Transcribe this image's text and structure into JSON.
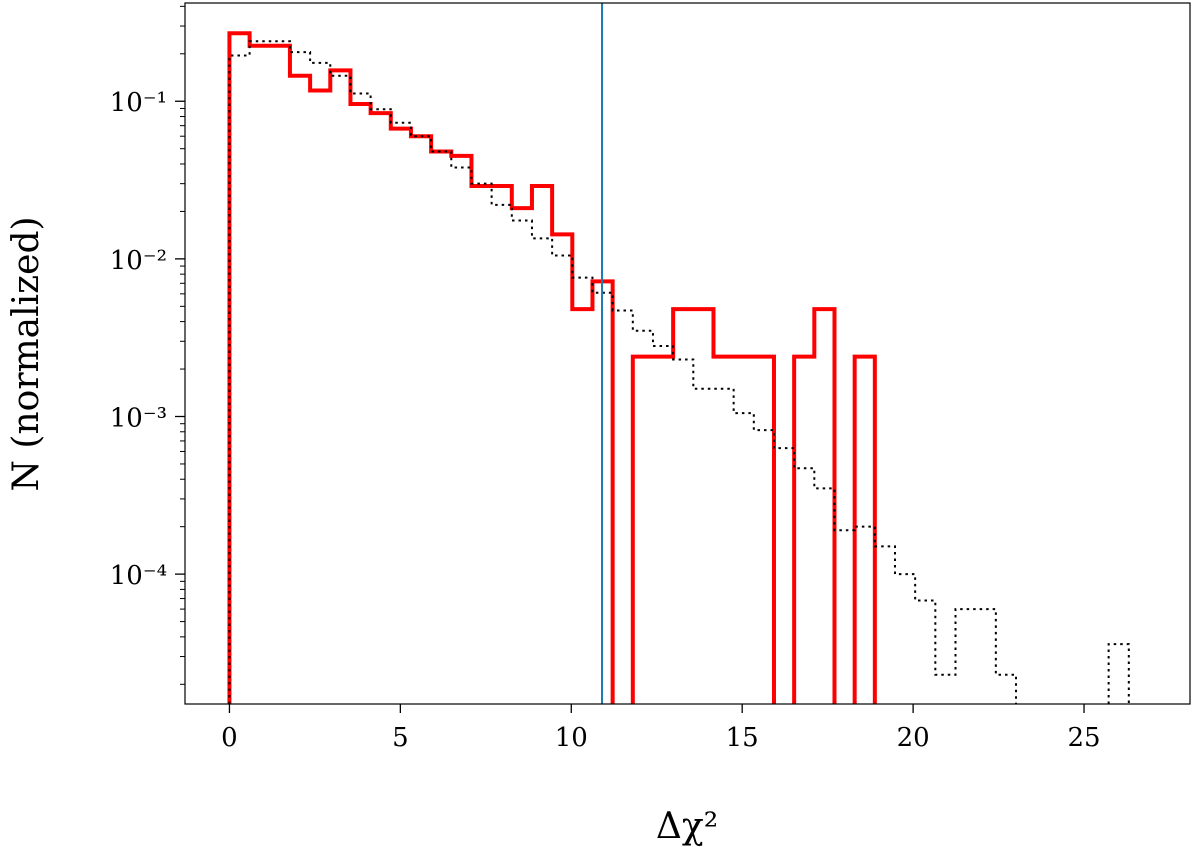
{
  "chart_data": {
    "type": "histogram-step",
    "xlabel": "Δχ²",
    "ylabel": "N (normalized)",
    "xlim": [
      -1.3,
      28.1
    ],
    "ylim": [
      1.5e-05,
      0.42
    ],
    "yscale": "log",
    "grid": false,
    "x_ticks": [
      0,
      5,
      10,
      15,
      20,
      25
    ],
    "x_tick_labels": [
      "0",
      "5",
      "10",
      "15",
      "20",
      "25"
    ],
    "y_ticks": [
      0.0001,
      0.001,
      0.01,
      0.1
    ],
    "y_tick_labels": [
      "10⁻⁴",
      "10⁻³",
      "10⁻²",
      "10⁻¹"
    ],
    "vline": {
      "x": 10.9,
      "color": "#1f77b4"
    },
    "series": [
      {
        "style": "solid",
        "color": "#ff0000",
        "bin_width": 0.59,
        "bins": [
          {
            "x": 0.0,
            "y": 0.27
          },
          {
            "x": 0.59,
            "y": 0.225
          },
          {
            "x": 1.18,
            "y": 0.225
          },
          {
            "x": 1.77,
            "y": 0.145
          },
          {
            "x": 2.36,
            "y": 0.117
          },
          {
            "x": 2.95,
            "y": 0.157
          },
          {
            "x": 3.54,
            "y": 0.096
          },
          {
            "x": 4.13,
            "y": 0.084
          },
          {
            "x": 4.72,
            "y": 0.067
          },
          {
            "x": 5.31,
            "y": 0.06
          },
          {
            "x": 5.9,
            "y": 0.048
          },
          {
            "x": 6.49,
            "y": 0.045
          },
          {
            "x": 7.08,
            "y": 0.029
          },
          {
            "x": 7.67,
            "y": 0.029
          },
          {
            "x": 8.26,
            "y": 0.021
          },
          {
            "x": 8.85,
            "y": 0.029
          },
          {
            "x": 9.44,
            "y": 0.0143
          },
          {
            "x": 10.03,
            "y": 0.0048
          },
          {
            "x": 10.62,
            "y": 0.0072
          },
          {
            "x": 11.8,
            "y": 0.0024
          },
          {
            "x": 12.39,
            "y": 0.0024
          },
          {
            "x": 12.98,
            "y": 0.0048
          },
          {
            "x": 13.57,
            "y": 0.0048
          },
          {
            "x": 14.16,
            "y": 0.0024
          },
          {
            "x": 14.75,
            "y": 0.0024
          },
          {
            "x": 15.34,
            "y": 0.0024
          },
          {
            "x": 16.52,
            "y": 0.0024
          },
          {
            "x": 17.11,
            "y": 0.0048
          },
          {
            "x": 18.29,
            "y": 0.0024
          }
        ]
      },
      {
        "style": "dotted",
        "color": "#000000",
        "bin_width": 0.59,
        "bins": [
          {
            "x": 0.0,
            "y": 0.195
          },
          {
            "x": 0.59,
            "y": 0.24
          },
          {
            "x": 1.18,
            "y": 0.24
          },
          {
            "x": 1.77,
            "y": 0.205
          },
          {
            "x": 2.36,
            "y": 0.175
          },
          {
            "x": 2.95,
            "y": 0.145
          },
          {
            "x": 3.54,
            "y": 0.112
          },
          {
            "x": 4.13,
            "y": 0.089
          },
          {
            "x": 4.72,
            "y": 0.073
          },
          {
            "x": 5.31,
            "y": 0.06
          },
          {
            "x": 5.9,
            "y": 0.048
          },
          {
            "x": 6.49,
            "y": 0.038
          },
          {
            "x": 7.08,
            "y": 0.03
          },
          {
            "x": 7.67,
            "y": 0.022
          },
          {
            "x": 8.26,
            "y": 0.0175
          },
          {
            "x": 8.85,
            "y": 0.0135
          },
          {
            "x": 9.44,
            "y": 0.0105
          },
          {
            "x": 10.03,
            "y": 0.0076
          },
          {
            "x": 10.62,
            "y": 0.0061
          },
          {
            "x": 11.21,
            "y": 0.0047
          },
          {
            "x": 11.8,
            "y": 0.0035
          },
          {
            "x": 12.39,
            "y": 0.0028
          },
          {
            "x": 12.98,
            "y": 0.0023
          },
          {
            "x": 13.57,
            "y": 0.0015
          },
          {
            "x": 14.16,
            "y": 0.0015
          },
          {
            "x": 14.75,
            "y": 0.00105
          },
          {
            "x": 15.34,
            "y": 0.00082
          },
          {
            "x": 15.93,
            "y": 0.00063
          },
          {
            "x": 16.52,
            "y": 0.00047
          },
          {
            "x": 17.11,
            "y": 0.00035
          },
          {
            "x": 17.7,
            "y": 0.00019
          },
          {
            "x": 18.29,
            "y": 0.0002
          },
          {
            "x": 18.88,
            "y": 0.00015
          },
          {
            "x": 19.47,
            "y": 0.0001
          },
          {
            "x": 20.06,
            "y": 6.8e-05
          },
          {
            "x": 20.65,
            "y": 2.3e-05
          },
          {
            "x": 21.24,
            "y": 6e-05
          },
          {
            "x": 21.83,
            "y": 6e-05
          },
          {
            "x": 22.42,
            "y": 2.3e-05
          },
          {
            "x": 25.72,
            "y": 3.6e-05
          }
        ]
      }
    ]
  }
}
